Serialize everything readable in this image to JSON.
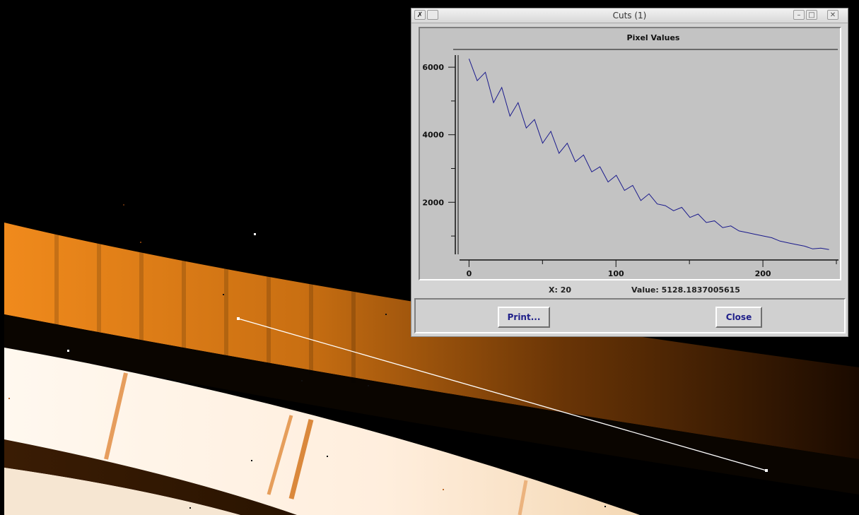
{
  "window": {
    "title": "Cuts (1)",
    "controls": {
      "minimize": "–",
      "maximize": "□",
      "close": "✕"
    }
  },
  "plot": {
    "title": "Pixel Values",
    "x_ticks": [
      "0",
      "100",
      "200"
    ],
    "y_ticks": [
      "6000",
      "4000",
      "2000"
    ],
    "line_color": "#1a1a8c",
    "bg_color": "#c3c3c3"
  },
  "status": {
    "x_readout": "X: 20",
    "value_readout": "Value: 5128.1837005615"
  },
  "buttons": {
    "print_label": "Print...",
    "close_label": "Close"
  },
  "chart_data": {
    "type": "line",
    "title": "Pixel Values",
    "xlabel": "",
    "ylabel": "",
    "xlim": [
      -5,
      250
    ],
    "ylim": [
      500,
      6400
    ],
    "series": [
      {
        "values": [
          6250,
          5600,
          5850,
          4950,
          5400,
          4550,
          4950,
          4200,
          4450,
          3750,
          4100,
          3450,
          3750,
          3200,
          3400,
          2900,
          3050,
          2600,
          2800,
          2350,
          2500,
          2050,
          2250,
          1950,
          1900,
          1750,
          1850,
          1550,
          1650,
          1400,
          1450,
          1250,
          1300,
          1150,
          1100,
          1050,
          1000,
          950,
          850,
          800,
          750,
          700,
          620,
          640,
          600
        ]
      }
    ]
  }
}
